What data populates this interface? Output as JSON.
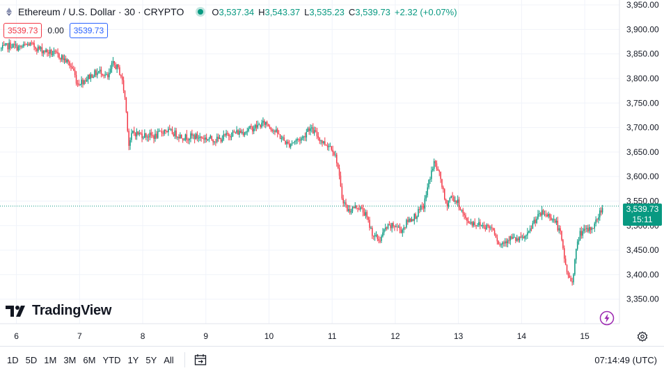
{
  "header": {
    "title": "Ethereum / U.S. Dollar · 30 · CRYPTO",
    "o_label": "O",
    "o_value": "3,537.34",
    "h_label": "H",
    "h_value": "3,543.37",
    "l_label": "L",
    "l_value": "3,535.23",
    "c_label": "C",
    "c_value": "3,539.73",
    "change": "+2.32 (+0.07%)"
  },
  "quote": {
    "sell": "3539.73",
    "spread": "0.00",
    "buy": "3539.73"
  },
  "brand": "TradingView",
  "last_price": {
    "value": "3,539.73",
    "countdown": "15:11"
  },
  "ranges": [
    "1D",
    "5D",
    "1M",
    "3M",
    "6M",
    "YTD",
    "1Y",
    "5Y",
    "All"
  ],
  "clock": "07:14:49 (UTC)",
  "colors": {
    "up": "#089981",
    "down": "#f23645",
    "grid": "#f0f3fa",
    "accent": "#9c27b0"
  },
  "icons": [
    "ethereum-icon",
    "live-dot-icon",
    "tradingview-logo-icon",
    "bolt-icon",
    "gear-icon",
    "calendar-icon"
  ],
  "chart_data": {
    "type": "candlestick",
    "symbol": "ETHUSD",
    "interval_minutes": 30,
    "y_ticks": [
      "3,950.00",
      "3,900.00",
      "3,850.00",
      "3,800.00",
      "3,750.00",
      "3,700.00",
      "3,650.00",
      "3,600.00",
      "3,550.00",
      "3,500.00",
      "3,450.00",
      "3,400.00",
      "3,350.00"
    ],
    "y_tick_values": [
      3950,
      3900,
      3850,
      3800,
      3750,
      3700,
      3650,
      3600,
      3550,
      3500,
      3450,
      3400,
      3350
    ],
    "ylim": [
      3300,
      3960
    ],
    "x_ticks": [
      "6",
      "7",
      "8",
      "9",
      "10",
      "11",
      "12",
      "13",
      "14",
      "15"
    ],
    "x_tick_values": [
      6,
      7,
      8,
      9,
      10,
      11,
      12,
      13,
      14,
      15
    ],
    "xlim": [
      5.74,
      15.55
    ],
    "last_close": 3539.73,
    "close_path": [
      [
        5.76,
        3860
      ],
      [
        5.9,
        3868
      ],
      [
        6.05,
        3862
      ],
      [
        6.2,
        3870
      ],
      [
        6.4,
        3858
      ],
      [
        6.55,
        3852
      ],
      [
        6.7,
        3845
      ],
      [
        6.82,
        3832
      ],
      [
        6.9,
        3818
      ],
      [
        6.96,
        3790
      ],
      [
        7.05,
        3795
      ],
      [
        7.2,
        3808
      ],
      [
        7.35,
        3815
      ],
      [
        7.45,
        3800
      ],
      [
        7.52,
        3830
      ],
      [
        7.6,
        3822
      ],
      [
        7.66,
        3805
      ],
      [
        7.72,
        3760
      ],
      [
        7.76,
        3700
      ],
      [
        7.78,
        3665
      ],
      [
        7.84,
        3690
      ],
      [
        8.0,
        3685
      ],
      [
        8.2,
        3682
      ],
      [
        8.35,
        3695
      ],
      [
        8.5,
        3688
      ],
      [
        8.65,
        3680
      ],
      [
        8.8,
        3682
      ],
      [
        9.0,
        3678
      ],
      [
        9.2,
        3675
      ],
      [
        9.4,
        3688
      ],
      [
        9.6,
        3692
      ],
      [
        9.8,
        3702
      ],
      [
        9.95,
        3710
      ],
      [
        10.05,
        3698
      ],
      [
        10.15,
        3685
      ],
      [
        10.3,
        3665
      ],
      [
        10.4,
        3672
      ],
      [
        10.55,
        3680
      ],
      [
        10.62,
        3700
      ],
      [
        10.72,
        3690
      ],
      [
        10.85,
        3670
      ],
      [
        11.0,
        3660
      ],
      [
        11.08,
        3630
      ],
      [
        11.15,
        3560
      ],
      [
        11.25,
        3530
      ],
      [
        11.4,
        3540
      ],
      [
        11.52,
        3525
      ],
      [
        11.65,
        3480
      ],
      [
        11.75,
        3470
      ],
      [
        11.85,
        3495
      ],
      [
        12.0,
        3500
      ],
      [
        12.1,
        3490
      ],
      [
        12.2,
        3510
      ],
      [
        12.32,
        3520
      ],
      [
        12.45,
        3540
      ],
      [
        12.55,
        3600
      ],
      [
        12.62,
        3630
      ],
      [
        12.72,
        3595
      ],
      [
        12.8,
        3540
      ],
      [
        12.88,
        3560
      ],
      [
        13.0,
        3545
      ],
      [
        13.12,
        3510
      ],
      [
        13.25,
        3505
      ],
      [
        13.4,
        3500
      ],
      [
        13.55,
        3495
      ],
      [
        13.65,
        3460
      ],
      [
        13.8,
        3475
      ],
      [
        13.95,
        3470
      ],
      [
        14.1,
        3480
      ],
      [
        14.2,
        3510
      ],
      [
        14.32,
        3525
      ],
      [
        14.45,
        3520
      ],
      [
        14.55,
        3505
      ],
      [
        14.62,
        3480
      ],
      [
        14.68,
        3430
      ],
      [
        14.74,
        3395
      ],
      [
        14.8,
        3385
      ],
      [
        14.86,
        3445
      ],
      [
        14.92,
        3485
      ],
      [
        15.05,
        3490
      ],
      [
        15.15,
        3500
      ],
      [
        15.25,
        3530
      ],
      [
        15.3,
        3539.73
      ]
    ]
  }
}
